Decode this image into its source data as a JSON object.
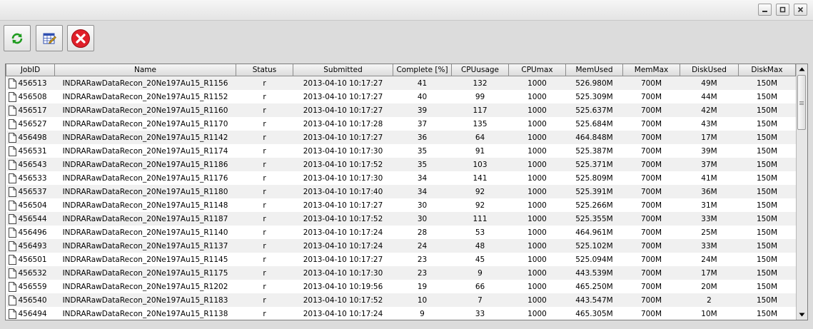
{
  "colors": {
    "refresh_green": "#1e9b1e",
    "stop_red": "#e0202a",
    "grid_blue": "#3050b0"
  },
  "window_controls": {
    "minimize": "minimize-icon",
    "restore": "restore-icon",
    "close": "close-icon"
  },
  "toolbar": {
    "refresh_icon": "refresh-icon",
    "edit_icon": "spreadsheet-icon",
    "stop_icon": "stop-icon"
  },
  "table": {
    "columns": [
      "JobID",
      "Name",
      "Status",
      "Submitted",
      "Complete [%]",
      "CPUusage",
      "CPUmax",
      "MemUsed",
      "MemMax",
      "DiskUsed",
      "DiskMax"
    ],
    "rows": [
      [
        "456513",
        "INDRARawDataRecon_20Ne197Au15_R1156",
        "r",
        "2013-04-10 10:17:27",
        "41",
        "132",
        "1000",
        "526.980M",
        "700M",
        "49M",
        "150M"
      ],
      [
        "456508",
        "INDRARawDataRecon_20Ne197Au15_R1152",
        "r",
        "2013-04-10 10:17:27",
        "40",
        "99",
        "1000",
        "525.309M",
        "700M",
        "44M",
        "150M"
      ],
      [
        "456517",
        "INDRARawDataRecon_20Ne197Au15_R1160",
        "r",
        "2013-04-10 10:17:27",
        "39",
        "117",
        "1000",
        "525.637M",
        "700M",
        "42M",
        "150M"
      ],
      [
        "456527",
        "INDRARawDataRecon_20Ne197Au15_R1170",
        "r",
        "2013-04-10 10:17:28",
        "37",
        "135",
        "1000",
        "525.684M",
        "700M",
        "43M",
        "150M"
      ],
      [
        "456498",
        "INDRARawDataRecon_20Ne197Au15_R1142",
        "r",
        "2013-04-10 10:17:27",
        "36",
        "64",
        "1000",
        "464.848M",
        "700M",
        "17M",
        "150M"
      ],
      [
        "456531",
        "INDRARawDataRecon_20Ne197Au15_R1174",
        "r",
        "2013-04-10 10:17:30",
        "35",
        "91",
        "1000",
        "525.387M",
        "700M",
        "39M",
        "150M"
      ],
      [
        "456543",
        "INDRARawDataRecon_20Ne197Au15_R1186",
        "r",
        "2013-04-10 10:17:52",
        "35",
        "103",
        "1000",
        "525.371M",
        "700M",
        "37M",
        "150M"
      ],
      [
        "456533",
        "INDRARawDataRecon_20Ne197Au15_R1176",
        "r",
        "2013-04-10 10:17:30",
        "34",
        "141",
        "1000",
        "525.809M",
        "700M",
        "41M",
        "150M"
      ],
      [
        "456537",
        "INDRARawDataRecon_20Ne197Au15_R1180",
        "r",
        "2013-04-10 10:17:40",
        "34",
        "92",
        "1000",
        "525.391M",
        "700M",
        "36M",
        "150M"
      ],
      [
        "456504",
        "INDRARawDataRecon_20Ne197Au15_R1148",
        "r",
        "2013-04-10 10:17:27",
        "30",
        "92",
        "1000",
        "525.266M",
        "700M",
        "31M",
        "150M"
      ],
      [
        "456544",
        "INDRARawDataRecon_20Ne197Au15_R1187",
        "r",
        "2013-04-10 10:17:52",
        "30",
        "111",
        "1000",
        "525.355M",
        "700M",
        "33M",
        "150M"
      ],
      [
        "456496",
        "INDRARawDataRecon_20Ne197Au15_R1140",
        "r",
        "2013-04-10 10:17:24",
        "28",
        "53",
        "1000",
        "464.961M",
        "700M",
        "25M",
        "150M"
      ],
      [
        "456493",
        "INDRARawDataRecon_20Ne197Au15_R1137",
        "r",
        "2013-04-10 10:17:24",
        "24",
        "48",
        "1000",
        "525.102M",
        "700M",
        "33M",
        "150M"
      ],
      [
        "456501",
        "INDRARawDataRecon_20Ne197Au15_R1145",
        "r",
        "2013-04-10 10:17:27",
        "23",
        "45",
        "1000",
        "525.094M",
        "700M",
        "24M",
        "150M"
      ],
      [
        "456532",
        "INDRARawDataRecon_20Ne197Au15_R1175",
        "r",
        "2013-04-10 10:17:30",
        "23",
        "9",
        "1000",
        "443.539M",
        "700M",
        "17M",
        "150M"
      ],
      [
        "456559",
        "INDRARawDataRecon_20Ne197Au15_R1202",
        "r",
        "2013-04-10 10:19:56",
        "19",
        "66",
        "1000",
        "465.250M",
        "700M",
        "20M",
        "150M"
      ],
      [
        "456540",
        "INDRARawDataRecon_20Ne197Au15_R1183",
        "r",
        "2013-04-10 10:17:52",
        "10",
        "7",
        "1000",
        "443.547M",
        "700M",
        "2",
        "150M"
      ],
      [
        "456494",
        "INDRARawDataRecon_20Ne197Au15_R1138",
        "r",
        "2013-04-10 10:17:24",
        "9",
        "33",
        "1000",
        "465.305M",
        "700M",
        "10M",
        "150M"
      ]
    ]
  }
}
